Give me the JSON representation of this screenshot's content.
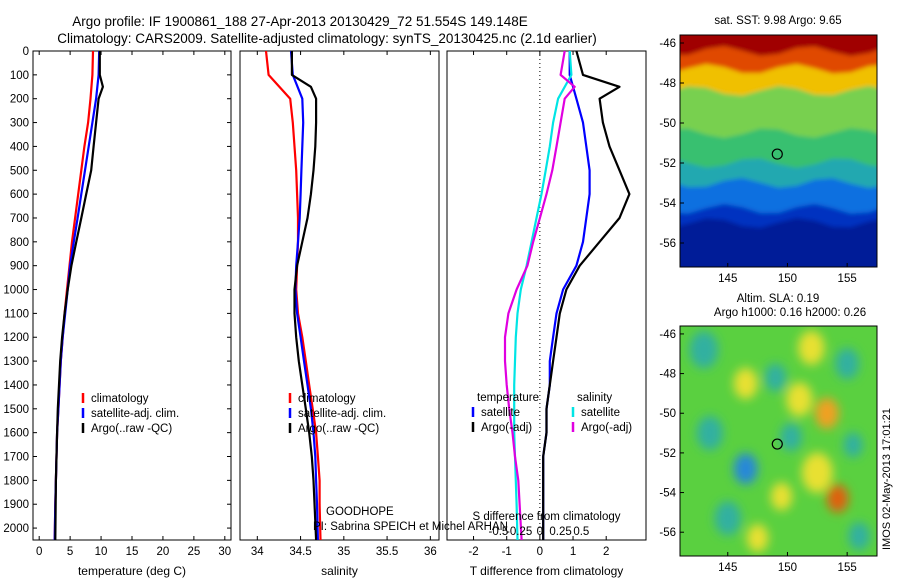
{
  "header": {
    "line1": "Argo profile: IF 1900861_188 27-Apr-2013 20130429_72 51.554S 149.148E",
    "line2": "Climatology: CARS2009. Satellite-adjusted climatology: synTS_20130425.nc (2.1d earlier)"
  },
  "footer": {
    "program": "GOODHOPE",
    "pi": "PI: Sabrina SPEICH et Michel ARHAN",
    "stamp": "IMOS 02-May-2013 17:01:21"
  },
  "colors": {
    "climatology": "#ff0000",
    "satellite": "#0000ff",
    "argo": "#000000",
    "sat_salinity": "#00e5e5",
    "argo_salinity": "#e000e0"
  },
  "chart_data": [
    {
      "id": "temperature",
      "type": "line",
      "xlabel": "temperature (deg C)",
      "ylabel": "",
      "xlim": [
        -1,
        31
      ],
      "ylim": [
        2050,
        0
      ],
      "xticks": [
        0,
        5,
        10,
        15,
        20,
        25,
        30
      ],
      "yticks": [
        0,
        100,
        200,
        300,
        400,
        500,
        600,
        700,
        800,
        900,
        1000,
        1100,
        1200,
        1300,
        1400,
        1500,
        1600,
        1700,
        1800,
        1900,
        2000
      ],
      "legend": [
        "climatology",
        "satellite-adj. clim.",
        "Argo(..raw -QC)"
      ],
      "legend_location": "center",
      "series": [
        {
          "name": "climatology",
          "color": "#ff0000",
          "x": [
            8.7,
            8.6,
            8.3,
            7.9,
            7.3,
            6.8,
            6.3,
            5.8,
            5.3,
            4.9,
            4.5,
            4.1,
            3.8,
            3.5,
            3.3,
            3.1,
            2.9,
            2.8,
            2.7,
            2.6,
            2.5
          ],
          "y": [
            0,
            100,
            200,
            300,
            400,
            500,
            600,
            700,
            800,
            900,
            1000,
            1100,
            1200,
            1300,
            1400,
            1500,
            1600,
            1700,
            1800,
            1900,
            2050
          ]
        },
        {
          "name": "satellite-adj. clim.",
          "color": "#0000ff",
          "x": [
            9.7,
            9.6,
            9.2,
            8.6,
            8.0,
            7.4,
            6.8,
            6.2,
            5.6,
            5.0,
            4.6,
            4.2,
            3.8,
            3.5,
            3.3,
            3.1,
            2.9,
            2.8,
            2.7,
            2.6,
            2.5
          ],
          "y": [
            0,
            100,
            200,
            300,
            400,
            500,
            600,
            700,
            800,
            900,
            1000,
            1100,
            1200,
            1300,
            1400,
            1500,
            1600,
            1700,
            1800,
            1900,
            2050
          ]
        },
        {
          "name": "Argo(..raw -QC)",
          "color": "#000000",
          "x": [
            9.8,
            9.8,
            10.3,
            9.6,
            9.2,
            8.8,
            8.4,
            7.6,
            6.8,
            6.0,
            5.2,
            4.6,
            4.1,
            3.7,
            3.4,
            3.2,
            3.0,
            2.9,
            2.8,
            2.7,
            2.6
          ],
          "y": [
            0,
            100,
            150,
            200,
            300,
            400,
            500,
            600,
            700,
            800,
            900,
            1000,
            1100,
            1200,
            1300,
            1400,
            1500,
            1600,
            1700,
            1800,
            2050
          ]
        }
      ]
    },
    {
      "id": "salinity",
      "type": "line",
      "xlabel": "salinity",
      "ylabel": "",
      "xlim": [
        33.8,
        36.1
      ],
      "ylim": [
        2050,
        0
      ],
      "xticks": [
        34,
        34.5,
        35,
        35.5,
        36
      ],
      "xtick_labels": [
        "34",
        "34.5",
        "35",
        "35.5",
        "36"
      ],
      "legend": [
        "climatology",
        "satellite-adj. clim.",
        "Argo(..raw -QC)"
      ],
      "legend_location": "center",
      "series": [
        {
          "name": "climatology",
          "color": "#ff0000",
          "x": [
            34.1,
            34.13,
            34.38,
            34.41,
            34.43,
            34.45,
            34.46,
            34.47,
            34.47,
            34.46,
            34.45,
            34.47,
            34.52,
            34.56,
            34.6,
            34.64,
            34.68,
            34.7,
            34.72,
            34.72,
            34.73
          ],
          "y": [
            0,
            100,
            200,
            300,
            400,
            500,
            600,
            700,
            800,
            900,
            1000,
            1100,
            1200,
            1300,
            1400,
            1500,
            1600,
            1700,
            1800,
            1900,
            2050
          ]
        },
        {
          "name": "satellite-adj. clim.",
          "color": "#0000ff",
          "x": [
            34.39,
            34.41,
            34.52,
            34.53,
            34.52,
            34.51,
            34.5,
            34.49,
            34.47,
            34.45,
            34.44,
            34.46,
            34.5,
            34.54,
            34.58,
            34.62,
            34.65,
            34.67,
            34.68,
            34.69,
            34.7
          ],
          "y": [
            0,
            100,
            200,
            300,
            400,
            500,
            600,
            700,
            800,
            900,
            1000,
            1100,
            1200,
            1300,
            1400,
            1500,
            1600,
            1700,
            1800,
            1900,
            2050
          ]
        },
        {
          "name": "Argo(..raw -QC)",
          "color": "#000000",
          "x": [
            34.4,
            34.4,
            34.62,
            34.68,
            34.68,
            34.67,
            34.65,
            34.62,
            34.58,
            34.52,
            34.46,
            34.43,
            34.43,
            34.45,
            34.48,
            34.52,
            34.56,
            34.6,
            34.63,
            34.65,
            34.68
          ],
          "y": [
            0,
            100,
            150,
            200,
            300,
            400,
            500,
            600,
            700,
            800,
            900,
            1000,
            1100,
            1200,
            1300,
            1400,
            1500,
            1600,
            1700,
            1800,
            2050
          ]
        }
      ]
    },
    {
      "id": "difference",
      "type": "line",
      "xlabel": "T difference from climatology",
      "top_label": "S difference from climatology",
      "ylabel": "",
      "xlim": [
        -2.8,
        3.2
      ],
      "ylim": [
        2050,
        0
      ],
      "xticks": [
        -2,
        -1,
        0,
        1,
        2
      ],
      "top_xticks": [
        "-0.5",
        "-0.25",
        "0",
        "0.25",
        "0.5"
      ],
      "legend_title_left": "temperature",
      "legend_title_right": "salinity",
      "legend": [
        "satellite",
        "Argo(-adj)",
        "satellite",
        "Argo(-adj)"
      ],
      "legend_location": "lower-center",
      "series": [
        {
          "name": "satellite",
          "color": "#0000ff",
          "x": [
            0.9,
            0.9,
            1.1,
            1.3,
            1.4,
            1.5,
            1.5,
            1.4,
            1.3,
            1.1,
            0.7,
            0.5,
            0.4,
            0.3,
            0.3,
            0.2,
            0.2,
            0.1,
            0.1,
            0.1,
            0.1
          ],
          "y": [
            0,
            100,
            200,
            300,
            400,
            500,
            600,
            700,
            800,
            900,
            1000,
            1100,
            1200,
            1300,
            1400,
            1500,
            1600,
            1700,
            1800,
            1900,
            2050
          ]
        },
        {
          "name": "Argo(-adj)",
          "color": "#000000",
          "x": [
            1.1,
            1.3,
            2.4,
            1.8,
            1.9,
            2.1,
            2.4,
            2.7,
            2.4,
            1.8,
            1.2,
            0.8,
            0.6,
            0.5,
            0.4,
            0.3,
            0.2,
            0.2,
            0.1,
            0.1,
            0.1
          ],
          "y": [
            0,
            100,
            150,
            200,
            300,
            400,
            500,
            600,
            700,
            800,
            900,
            1000,
            1100,
            1200,
            1300,
            1400,
            1500,
            1600,
            1700,
            1800,
            2050
          ]
        },
        {
          "name": "satellite",
          "color": "#00e5e5",
          "x": [
            0.36,
            0.38,
            0.22,
            0.16,
            0.12,
            0.07,
            0.02,
            -0.04,
            -0.1,
            -0.16,
            -0.23,
            -0.27,
            -0.29,
            -0.3,
            -0.31,
            -0.31,
            -0.31,
            -0.3,
            -0.29,
            -0.28,
            -0.27
          ],
          "y": [
            0,
            100,
            200,
            300,
            400,
            500,
            600,
            700,
            800,
            900,
            1000,
            1100,
            1200,
            1300,
            1400,
            1500,
            1600,
            1700,
            1800,
            1900,
            2050
          ]
        },
        {
          "name": "Argo(-adj)",
          "color": "#e000e0",
          "x": [
            0.3,
            0.25,
            0.42,
            0.3,
            0.25,
            0.2,
            0.15,
            0.08,
            0.0,
            -0.08,
            -0.15,
            -0.28,
            -0.38,
            -0.42,
            -0.42,
            -0.4,
            -0.37,
            -0.33,
            -0.3,
            -0.26,
            -0.22
          ],
          "y": [
            0,
            100,
            150,
            200,
            300,
            400,
            500,
            600,
            700,
            800,
            900,
            1000,
            1100,
            1200,
            1300,
            1400,
            1500,
            1600,
            1700,
            1800,
            2050
          ]
        }
      ]
    },
    {
      "id": "sst_map",
      "type": "heatmap",
      "title": "sat. SST: 9.98 Argo: 9.65",
      "xlim": [
        141,
        157.5
      ],
      "ylim": [
        -57.2,
        -45.6
      ],
      "xticks": [
        145,
        150,
        155
      ],
      "yticks": [
        -46,
        -48,
        -50,
        -52,
        -54,
        -56
      ],
      "marker": {
        "lon": 149.148,
        "lat": -51.554
      },
      "zones": [
        {
          "lat_top": -45.6,
          "color": "#a00000"
        },
        {
          "lat_top": -46.4,
          "color": "#e04800"
        },
        {
          "lat_top": -47.3,
          "color": "#f0c000"
        },
        {
          "lat_top": -48.4,
          "color": "#78d050"
        },
        {
          "lat_top": -50.5,
          "color": "#38c070"
        },
        {
          "lat_top": -52.0,
          "color": "#20a8b0"
        },
        {
          "lat_top": -53.0,
          "color": "#1070e0"
        },
        {
          "lat_top": -54.3,
          "color": "#0030c0"
        },
        {
          "lat_top": -55.0,
          "color": "#001a98"
        }
      ]
    },
    {
      "id": "sla_map",
      "type": "heatmap",
      "title": "Altim. SLA: 0.19",
      "subtitle": "Argo h1000: 0.16 h2000: 0.26",
      "xlim": [
        141,
        157.5
      ],
      "ylim": [
        -57.2,
        -45.6
      ],
      "xticks": [
        145,
        150,
        155
      ],
      "yticks": [
        -46,
        -48,
        -50,
        -52,
        -54,
        -56
      ],
      "marker": {
        "lon": 149.148,
        "lat": -51.554
      },
      "background": "#5ad040",
      "blobs": [
        {
          "lon": 143.0,
          "lat": -46.8,
          "r": 1.2,
          "color": "#30b0a0"
        },
        {
          "lon": 146.5,
          "lat": -48.5,
          "r": 1.0,
          "color": "#e8e030"
        },
        {
          "lon": 149.0,
          "lat": -48.2,
          "r": 0.9,
          "color": "#30b0a0"
        },
        {
          "lon": 152.0,
          "lat": -46.7,
          "r": 1.1,
          "color": "#e8e030"
        },
        {
          "lon": 155.0,
          "lat": -47.5,
          "r": 1.0,
          "color": "#30b0a0"
        },
        {
          "lon": 151.0,
          "lat": -49.3,
          "r": 1.1,
          "color": "#e8e030"
        },
        {
          "lon": 153.3,
          "lat": -50.0,
          "r": 1.0,
          "color": "#f0a020"
        },
        {
          "lon": 143.5,
          "lat": -51.0,
          "r": 1.1,
          "color": "#30b0a0"
        },
        {
          "lon": 146.5,
          "lat": -52.8,
          "r": 1.0,
          "color": "#2888d8"
        },
        {
          "lon": 150.3,
          "lat": -51.2,
          "r": 0.9,
          "color": "#30b0a0"
        },
        {
          "lon": 152.5,
          "lat": -53.0,
          "r": 1.3,
          "color": "#e8e030"
        },
        {
          "lon": 154.2,
          "lat": -54.3,
          "r": 0.9,
          "color": "#e06010"
        },
        {
          "lon": 149.5,
          "lat": -54.2,
          "r": 0.9,
          "color": "#e8e030"
        },
        {
          "lon": 145.0,
          "lat": -55.3,
          "r": 1.1,
          "color": "#30b0a0"
        },
        {
          "lon": 147.5,
          "lat": -56.3,
          "r": 0.9,
          "color": "#e8e030"
        },
        {
          "lon": 155.5,
          "lat": -51.6,
          "r": 0.8,
          "color": "#30b0a0"
        },
        {
          "lon": 156.0,
          "lat": -56.2,
          "r": 0.9,
          "color": "#30b0a0"
        }
      ]
    }
  ]
}
